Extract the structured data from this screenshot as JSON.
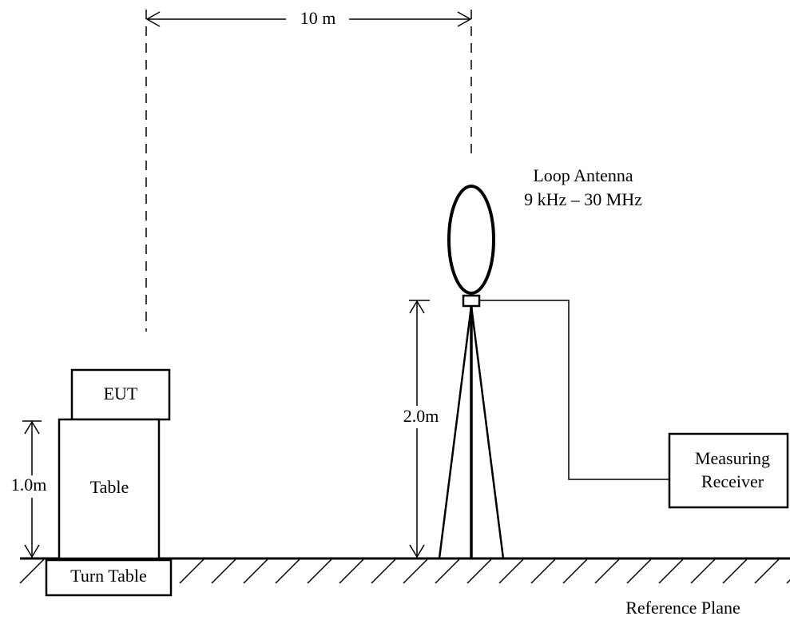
{
  "top_dimension": "10 m",
  "antenna": {
    "name": "Loop Antenna",
    "range": "9 kHz – 30 MHz",
    "height": "2.0m"
  },
  "eut": "EUT",
  "table": {
    "label": "Table",
    "height": "1.0m"
  },
  "turn_table": "Turn Table",
  "receiver": {
    "line1": "Measuring",
    "line2": "Receiver"
  },
  "reference_plane": "Reference Plane"
}
